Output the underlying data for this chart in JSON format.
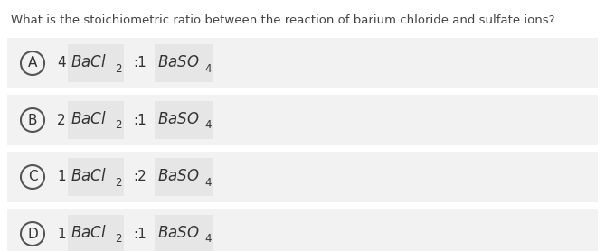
{
  "question": "What is the stoichiometric ratio between the reaction of barium chloride and sulfate ions?",
  "options": [
    {
      "label": "A",
      "coeff1": "4",
      "ratio": ":1",
      "coeff2": ""
    },
    {
      "label": "B",
      "coeff1": "2",
      "ratio": ":1",
      "coeff2": ""
    },
    {
      "label": "C",
      "coeff1": "1",
      "ratio": ":2",
      "coeff2": ""
    },
    {
      "label": "D",
      "coeff1": "1",
      "ratio": ":1",
      "coeff2": ""
    }
  ],
  "outer_bg": "#f0f0f0",
  "inner_bg": "#e8e8e8",
  "white": "#ffffff",
  "formula_bg": "#ebebeb",
  "text_color": "#333333",
  "question_color": "#444444",
  "question_fontsize": 9.5,
  "option_fontsize": 12,
  "label_fontsize": 11,
  "sub_fontsize": 8.5,
  "coeff_fontsize": 11,
  "fig_width": 6.69,
  "fig_height": 2.78,
  "dpi": 100
}
